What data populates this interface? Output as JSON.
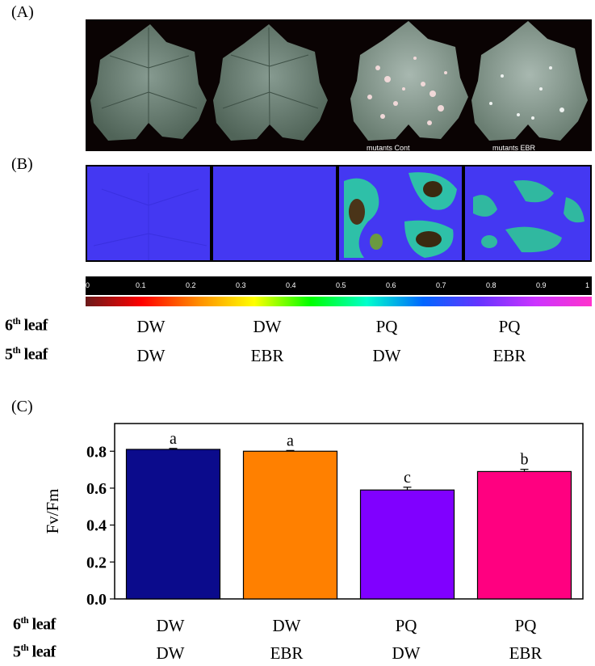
{
  "panels": {
    "a": "(A)",
    "b": "(B)",
    "c": "(C)"
  },
  "leaf_captions": [
    "mutants Cont",
    "mutants EBR"
  ],
  "scale": {
    "ticks": [
      "0",
      "0.1",
      "0.2",
      "0.3",
      "0.4",
      "0.5",
      "0.6",
      "0.7",
      "0.8",
      "0.9",
      "1"
    ],
    "gradient": [
      "#6b1a1a",
      "#ff0000",
      "#ff8c00",
      "#ffff00",
      "#00ff00",
      "#00ffcc",
      "#0066ff",
      "#6633ff",
      "#cc33ff",
      "#ff33cc"
    ]
  },
  "rows": {
    "sixth": {
      "num": "6",
      "sup": "th",
      "word": " leaf"
    },
    "fifth": {
      "num": "5",
      "sup": "th",
      "word": " leaf"
    }
  },
  "treatments_b": {
    "sixth": [
      "DW",
      "DW",
      "PQ",
      "PQ"
    ],
    "fifth": [
      "DW",
      "EBR",
      "DW",
      "EBR"
    ]
  },
  "chart_data": {
    "type": "bar",
    "categories": [
      "DW / DW",
      "DW / EBR",
      "PQ / DW",
      "PQ / EBR"
    ],
    "values": [
      0.81,
      0.8,
      0.59,
      0.69
    ],
    "errors": [
      0.005,
      0.004,
      0.015,
      0.012
    ],
    "letters": [
      "a",
      "a",
      "c",
      "b"
    ],
    "colors": [
      "#0b0b8c",
      "#ff8000",
      "#8000ff",
      "#ff0080"
    ],
    "ylabel": "Fv/Fm",
    "ylim": [
      0,
      0.95
    ],
    "yticks": [
      "0.0",
      "0.2",
      "0.4",
      "0.6",
      "0.8"
    ],
    "ytick_values": [
      0,
      0.2,
      0.4,
      0.6,
      0.8
    ],
    "sixth_leaf": [
      "DW",
      "DW",
      "PQ",
      "PQ"
    ],
    "fifth_leaf": [
      "DW",
      "EBR",
      "DW",
      "EBR"
    ]
  }
}
